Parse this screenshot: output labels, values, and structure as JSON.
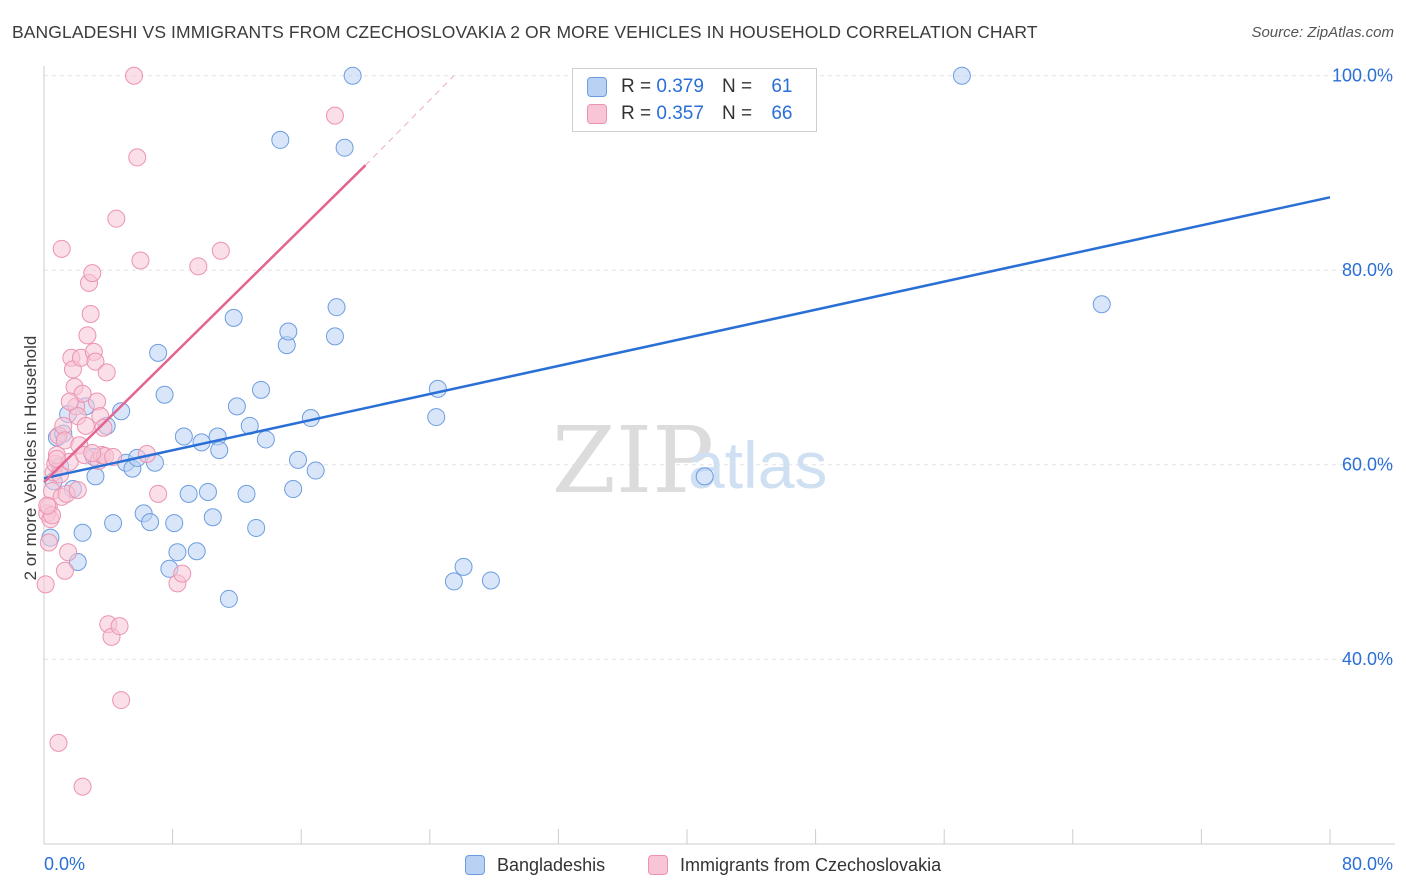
{
  "header": {
    "title": "BANGLADESHI VS IMMIGRANTS FROM CZECHOSLOVAKIA 2 OR MORE VEHICLES IN HOUSEHOLD CORRELATION CHART",
    "source": "Source: ZipAtlas.com"
  },
  "legend": {
    "series": [
      {
        "r_label": "R =",
        "r_value": "0.379",
        "n_label": "N =",
        "n_value": "61"
      },
      {
        "r_label": "R =",
        "r_value": "0.357",
        "n_label": "N =",
        "n_value": "66"
      }
    ]
  },
  "watermark": {
    "zip": "ZIP",
    "atlas": "atlas"
  },
  "chart_data": {
    "type": "scatter",
    "title": "BANGLADESHI VS IMMIGRANTS FROM CZECHOSLOVAKIA 2 OR MORE VEHICLES IN HOUSEHOLD CORRELATION CHART",
    "xlabel": "",
    "ylabel": "2 or more Vehicles in Household",
    "xlim": [
      0,
      80
    ],
    "ylim": [
      21,
      101
    ],
    "x_tick_labels": [
      "0.0%",
      "80.0%"
    ],
    "y_ticks": [
      40,
      60,
      80,
      100
    ],
    "y_tick_labels": [
      "40.0%",
      "60.0%",
      "80.0%",
      "100.0%"
    ],
    "grid": true,
    "legend_position": "bottom-center",
    "series": [
      {
        "name": "Bangladeshis",
        "color": "#6d9de0",
        "fill": "#b9d2f4",
        "trend": {
          "x": [
            0,
            80
          ],
          "y": [
            58.6,
            87.5
          ],
          "color": "#2a6fd6"
        },
        "points": [
          [
            0.4,
            52.5
          ],
          [
            0.8,
            62.8
          ],
          [
            1.0,
            59.8
          ],
          [
            1.2,
            63.2
          ],
          [
            1.5,
            65.2
          ],
          [
            1.8,
            57.5
          ],
          [
            2.1,
            50.0
          ],
          [
            2.6,
            66.0
          ],
          [
            3.1,
            60.8
          ],
          [
            3.2,
            58.8
          ],
          [
            3.9,
            64.0
          ],
          [
            4.3,
            54.0
          ],
          [
            4.8,
            65.5
          ],
          [
            5.1,
            60.2
          ],
          [
            5.5,
            59.6
          ],
          [
            5.8,
            60.7
          ],
          [
            6.2,
            55.0
          ],
          [
            6.6,
            54.1
          ],
          [
            6.9,
            60.2
          ],
          [
            7.1,
            71.5
          ],
          [
            7.5,
            67.2
          ],
          [
            7.8,
            49.3
          ],
          [
            8.1,
            54.0
          ],
          [
            8.3,
            51.0
          ],
          [
            8.7,
            62.9
          ],
          [
            9.0,
            57.0
          ],
          [
            9.5,
            51.1
          ],
          [
            9.8,
            62.3
          ],
          [
            10.2,
            57.2
          ],
          [
            10.5,
            54.6
          ],
          [
            10.8,
            62.9
          ],
          [
            10.9,
            61.5
          ],
          [
            11.5,
            46.2
          ],
          [
            11.8,
            75.1
          ],
          [
            12.0,
            66.0
          ],
          [
            12.6,
            57.0
          ],
          [
            12.8,
            64.0
          ],
          [
            13.2,
            53.5
          ],
          [
            13.5,
            67.7
          ],
          [
            13.8,
            62.6
          ],
          [
            14.7,
            93.4
          ],
          [
            15.1,
            72.3
          ],
          [
            15.2,
            73.7
          ],
          [
            15.5,
            57.5
          ],
          [
            15.8,
            60.5
          ],
          [
            16.6,
            64.8
          ],
          [
            16.9,
            59.4
          ],
          [
            18.1,
            73.2
          ],
          [
            18.2,
            76.2
          ],
          [
            18.7,
            92.6
          ],
          [
            19.2,
            100.0
          ],
          [
            24.4,
            64.9
          ],
          [
            24.5,
            67.8
          ],
          [
            25.5,
            48.0
          ],
          [
            26.1,
            49.5
          ],
          [
            27.8,
            48.1
          ],
          [
            41.1,
            58.8
          ],
          [
            57.1,
            100.0
          ],
          [
            65.8,
            76.5
          ],
          [
            0.6,
            58.3
          ],
          [
            2.4,
            53.0
          ]
        ]
      },
      {
        "name": "Immigrants from Czechoslovakia",
        "color": "#ec93b0",
        "fill": "#f7c5d5",
        "trend": {
          "x": [
            0,
            20
          ],
          "y": [
            58.2,
            90.8
          ],
          "dash_to": [
            25.5,
            100.0
          ],
          "color": "#e36491"
        },
        "points": [
          [
            0.1,
            47.7
          ],
          [
            0.2,
            55.0
          ],
          [
            0.3,
            55.7
          ],
          [
            0.4,
            54.4
          ],
          [
            0.5,
            57.3
          ],
          [
            0.6,
            59.2
          ],
          [
            0.7,
            60.1
          ],
          [
            0.8,
            61.0
          ],
          [
            0.9,
            63.0
          ],
          [
            1.0,
            59.0
          ],
          [
            1.1,
            56.7
          ],
          [
            1.2,
            64.0
          ],
          [
            1.3,
            62.5
          ],
          [
            1.4,
            57.0
          ],
          [
            1.5,
            51.0
          ],
          [
            1.6,
            60.3
          ],
          [
            1.7,
            71.0
          ],
          [
            1.8,
            69.8
          ],
          [
            1.9,
            68.0
          ],
          [
            2.0,
            66.0
          ],
          [
            2.1,
            65.0
          ],
          [
            2.2,
            62.0
          ],
          [
            2.3,
            71.0
          ],
          [
            2.4,
            67.3
          ],
          [
            2.5,
            61.0
          ],
          [
            2.6,
            64.0
          ],
          [
            2.7,
            73.3
          ],
          [
            2.8,
            78.7
          ],
          [
            2.9,
            75.5
          ],
          [
            3.0,
            79.7
          ],
          [
            3.1,
            71.6
          ],
          [
            3.2,
            70.6
          ],
          [
            3.3,
            66.5
          ],
          [
            3.4,
            60.4
          ],
          [
            3.5,
            65.0
          ],
          [
            3.6,
            61.0
          ],
          [
            3.7,
            63.8
          ],
          [
            3.8,
            60.9
          ],
          [
            3.9,
            69.5
          ],
          [
            4.0,
            43.6
          ],
          [
            4.2,
            42.3
          ],
          [
            4.5,
            85.3
          ],
          [
            4.7,
            43.4
          ],
          [
            4.8,
            35.8
          ],
          [
            5.6,
            100.0
          ],
          [
            5.8,
            91.6
          ],
          [
            6.0,
            81.0
          ],
          [
            6.4,
            61.1
          ],
          [
            7.1,
            57.0
          ],
          [
            8.3,
            47.8
          ],
          [
            8.6,
            48.8
          ],
          [
            9.6,
            80.4
          ],
          [
            11.0,
            82.0
          ],
          [
            18.1,
            95.9
          ],
          [
            0.9,
            31.4
          ],
          [
            2.4,
            26.9
          ],
          [
            1.1,
            82.2
          ],
          [
            0.3,
            52.0
          ],
          [
            0.5,
            54.8
          ],
          [
            0.2,
            55.8
          ],
          [
            1.3,
            49.1
          ],
          [
            2.1,
            57.4
          ],
          [
            3.0,
            61.2
          ],
          [
            1.6,
            66.5
          ],
          [
            0.8,
            60.6
          ],
          [
            4.3,
            60.8
          ]
        ]
      }
    ]
  }
}
